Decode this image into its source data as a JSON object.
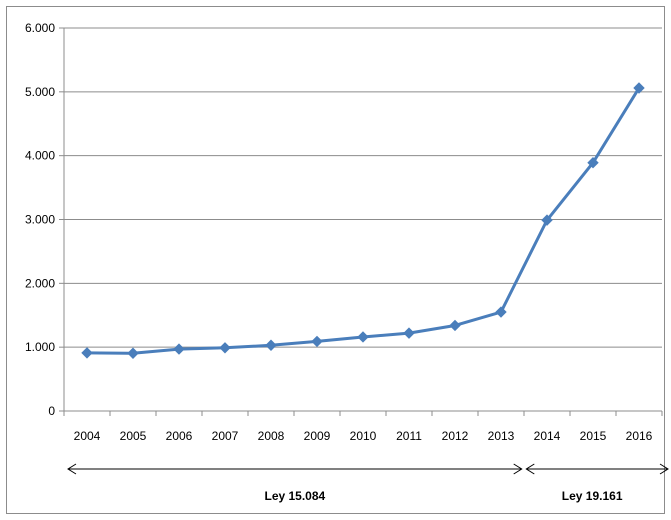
{
  "chart_data": {
    "type": "line",
    "title": "",
    "xlabel": "",
    "ylabel": "",
    "categories": [
      "2004",
      "2005",
      "2006",
      "2007",
      "2008",
      "2009",
      "2010",
      "2011",
      "2012",
      "2013",
      "2014",
      "2015",
      "2016"
    ],
    "series": [
      {
        "values": [
          910,
          905,
          970,
          990,
          1030,
          1090,
          1160,
          1220,
          1340,
          1550,
          2990,
          3890,
          5060
        ]
      }
    ],
    "ylim": [
      0,
      6000
    ],
    "yticks": [
      0,
      1000,
      2000,
      3000,
      4000,
      5000,
      6000
    ],
    "ytick_labels": [
      "0",
      "1.000",
      "2.000",
      "3.000",
      "4.000",
      "5.000",
      "6.000"
    ],
    "grid": true,
    "legend": "none",
    "periods": [
      {
        "label": "Ley 15.084",
        "from": "2004",
        "to": "2013"
      },
      {
        "label": "Ley 19.161",
        "from": "2014",
        "to": "2016"
      }
    ],
    "colors": {
      "series": "#4a7ebb",
      "grid": "#8c8c8c",
      "axis": "#8c8c8c"
    }
  }
}
